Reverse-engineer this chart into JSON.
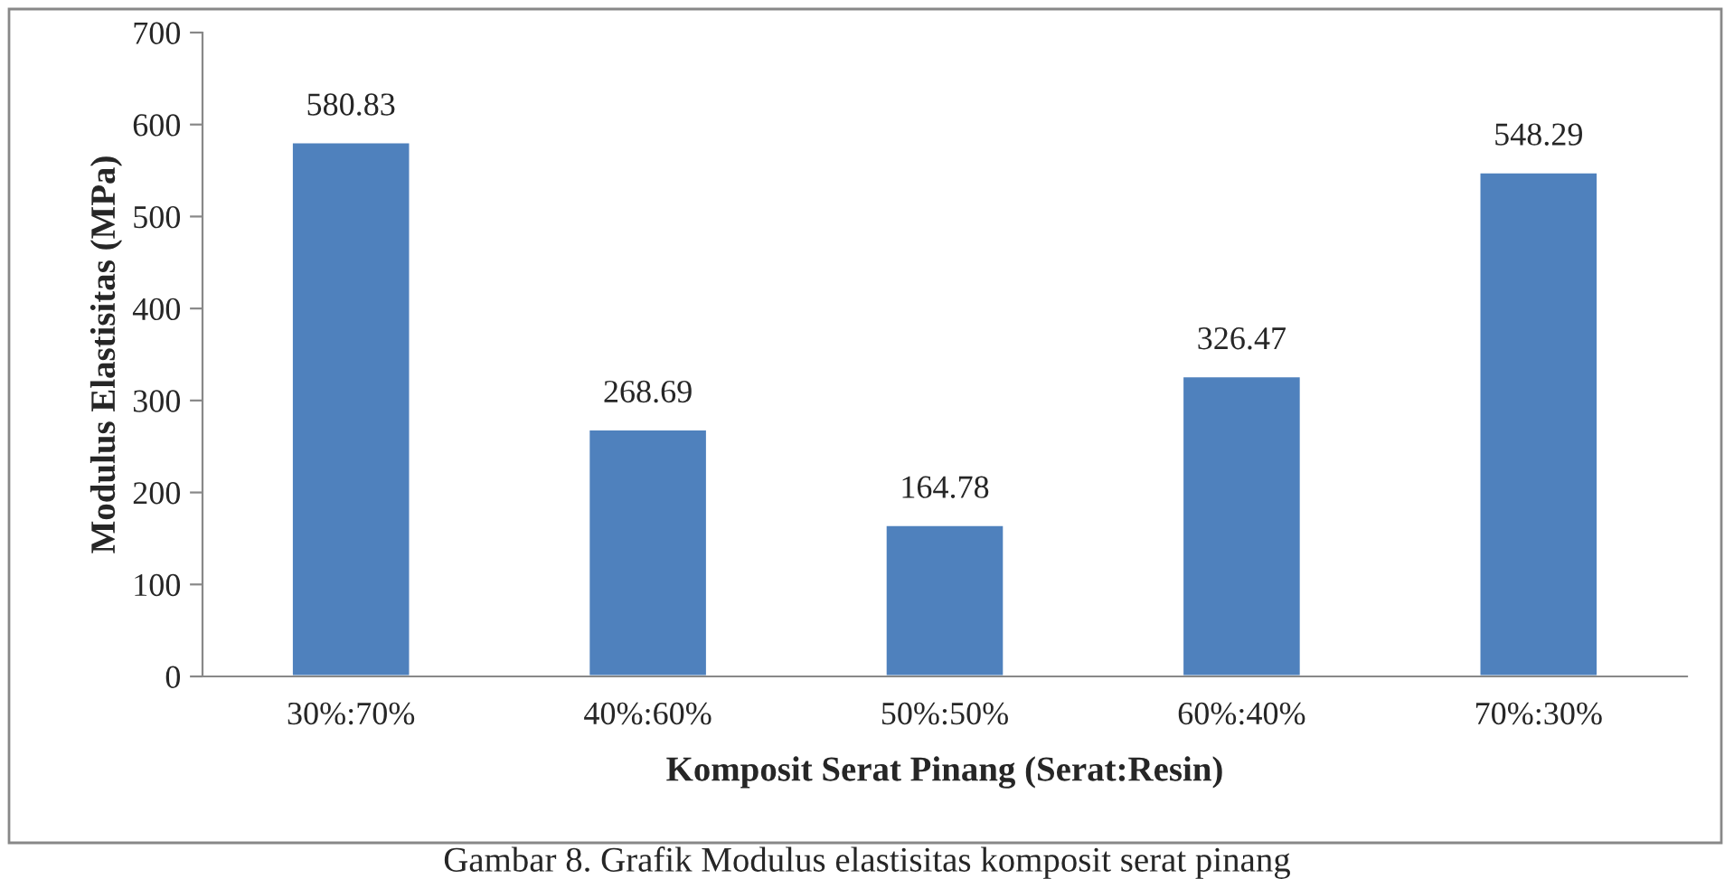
{
  "chart_data": {
    "type": "bar",
    "xlabel": "Komposit Serat Pinang (Serat:Resin)",
    "ylabel": "Modulus Elastisitas (MPa)",
    "categories": [
      "30%:70%",
      "40%:60%",
      "50%:50%",
      "60%:40%",
      "70%:30%"
    ],
    "values": [
      580.83,
      268.69,
      164.78,
      326.47,
      548.29
    ],
    "color": "#4f81bd",
    "ylim": [
      0,
      700
    ],
    "yticks": [
      0,
      100,
      200,
      300,
      400,
      500,
      600,
      700
    ],
    "data_labels": true,
    "grid": false,
    "legend": false,
    "annotations": [
      "Gambar 8. Grafik Modulus elastisitas komposit serat pinang"
    ]
  }
}
